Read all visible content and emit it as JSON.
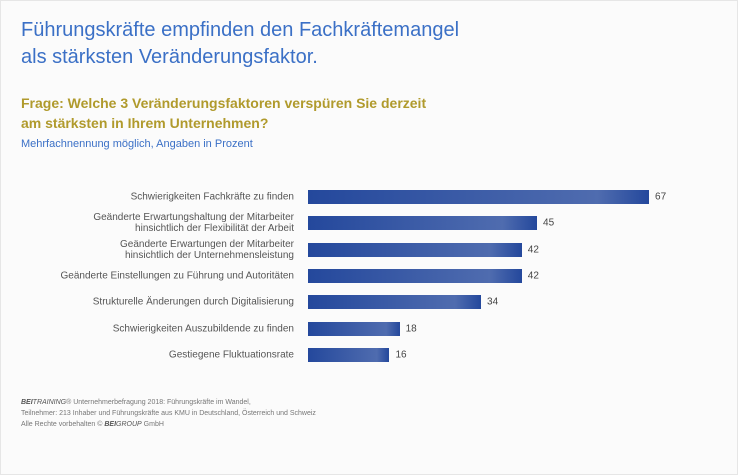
{
  "chart_data": {
    "type": "hbar",
    "title": "Führungskräfte empfinden den Fachkräftemangel\nals stärksten Veränderungsfaktor.",
    "question": "Frage: Welche 3 Veränderungsfaktoren verspüren Sie derzeit\nam stärksten in Ihrem Unternehmen?",
    "subtitle": "Mehrfachnennung möglich, Angaben in Prozent",
    "categories": [
      "Schwierigkeiten Fachkräfte zu finden",
      "Geänderte Erwartungshaltung der Mitarbeiter\nhinsichtlich der Flexibilität der Arbeit",
      "Geänderte Erwartungen der Mitarbeiter\nhinsichtlich der Unternehmensleistung",
      "Geänderte Einstellungen zu Führung und Autoritäten",
      "Strukturelle Änderungen durch Digitalisierung",
      "Schwierigkeiten Auszubildende zu finden",
      "Gestiegene Fluktuationsrate"
    ],
    "values": [
      67,
      45,
      42,
      42,
      34,
      18,
      16
    ],
    "color": "#24489c",
    "footer": [
      {
        "bold": "BEI",
        "italic": "TRAINING",
        "text": "® Unternehmerbefragung 2018: Führungskräfte im Wandel,"
      },
      {
        "text": "Teilnehmer: 213 Inhaber und Führungskräfte aus KMU in Deutschland, Österreich und Schweiz"
      },
      {
        "pre": "Alle Rechte vorbehalten © ",
        "bold": "BEI",
        "italic": "GROUP",
        "text": " GmbH"
      }
    ]
  }
}
